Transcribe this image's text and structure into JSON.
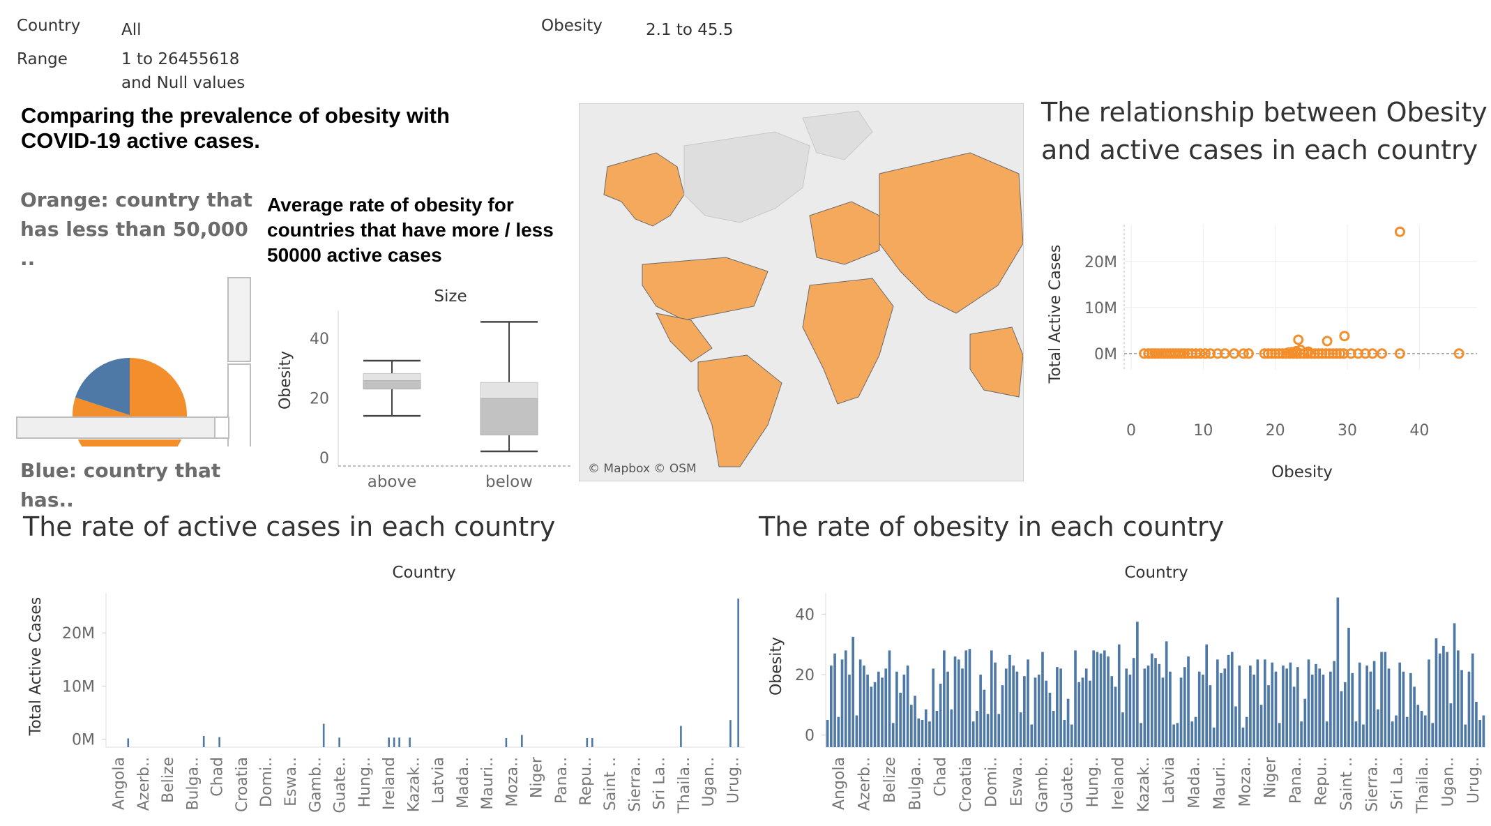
{
  "filters": {
    "country_label": "Country",
    "country_value": "All",
    "range_label": "Range",
    "range_value_line1": "1 to 26455618",
    "range_value_line2": "and Null values",
    "obesity_label": "Obesity",
    "obesity_value": "2.1 to 45.5"
  },
  "dashboard_title": "Comparing the prevalence of obesity with COVID-19 active cases.",
  "pie_legend": {
    "orange_text": "Orange: country that has less than 50,000 ..",
    "blue_text": "Blue: country that has.."
  },
  "colors": {
    "orange": "#F28E2B",
    "blue": "#4E79A7",
    "map_land": "#F4A95D",
    "map_bg": "#e8e8e8"
  },
  "map_attribution": "© Mapbox © OSM",
  "scatter_title": "The relationship between Obesity and active cases in each country",
  "active_title": "The rate of active cases in each country",
  "obesity_title": "The rate of obesity in each country",
  "chart_data": [
    {
      "type": "pie",
      "slices": [
        {
          "label": "Orange",
          "share": 0.8,
          "color": "#F28E2B"
        },
        {
          "label": "Blue",
          "share": 0.2,
          "color": "#4E79A7"
        }
      ]
    },
    {
      "type": "box",
      "title": "Average rate of obesity for countries that have more / less 50000 active cases",
      "header": "Size",
      "ylabel": "Obesity",
      "ylim": [
        0,
        47
      ],
      "yticks": [
        0,
        20,
        40
      ],
      "categories": [
        "above",
        "below"
      ],
      "boxes": [
        {
          "category": "above",
          "min": 14.0,
          "q1": 23.0,
          "median": 25.8,
          "q3": 28.2,
          "max": 32.5
        },
        {
          "category": "below",
          "min": 2.1,
          "q1": 7.6,
          "median": 19.8,
          "q3": 25.2,
          "max": 45.5
        }
      ]
    },
    {
      "type": "scatter",
      "xlabel": "Obesity",
      "ylabel": "Total Active Cases",
      "xlim": [
        0,
        48
      ],
      "ylim": [
        -2000000,
        28000000
      ],
      "xticks": [
        0,
        10,
        20,
        30,
        40
      ],
      "yticks": [
        0,
        10000000,
        20000000
      ],
      "yticklabels": [
        "0M",
        "10M",
        "20M"
      ],
      "points": [
        [
          1.8,
          0
        ],
        [
          2.4,
          0
        ],
        [
          2.9,
          0
        ],
        [
          3.3,
          0
        ],
        [
          3.7,
          0
        ],
        [
          4.2,
          0
        ],
        [
          4.6,
          0
        ],
        [
          5.0,
          0
        ],
        [
          5.4,
          0
        ],
        [
          5.8,
          0
        ],
        [
          6.2,
          0
        ],
        [
          6.6,
          0
        ],
        [
          7.0,
          0
        ],
        [
          7.4,
          0
        ],
        [
          7.9,
          0
        ],
        [
          8.4,
          0
        ],
        [
          9.0,
          0
        ],
        [
          9.6,
          0
        ],
        [
          10.3,
          0
        ],
        [
          11.0,
          0
        ],
        [
          12.0,
          0
        ],
        [
          13.0,
          0
        ],
        [
          14.3,
          0
        ],
        [
          15.6,
          0
        ],
        [
          16.3,
          0
        ],
        [
          18.5,
          0
        ],
        [
          19.0,
          0
        ],
        [
          19.5,
          0
        ],
        [
          20.0,
          0
        ],
        [
          20.5,
          0
        ],
        [
          21.0,
          0
        ],
        [
          21.5,
          0
        ],
        [
          22.0,
          0
        ],
        [
          22.5,
          0
        ],
        [
          23.0,
          0
        ],
        [
          23.5,
          0
        ],
        [
          24.0,
          0
        ],
        [
          24.5,
          0
        ],
        [
          25.0,
          0
        ],
        [
          25.5,
          0
        ],
        [
          26.0,
          0
        ],
        [
          26.5,
          0
        ],
        [
          27.0,
          0
        ],
        [
          27.5,
          0
        ],
        [
          28.0,
          0
        ],
        [
          28.5,
          0
        ],
        [
          29.0,
          0
        ],
        [
          29.5,
          0
        ],
        [
          30.5,
          0
        ],
        [
          31.5,
          0
        ],
        [
          32.5,
          0
        ],
        [
          33.5,
          0
        ],
        [
          34.8,
          0
        ],
        [
          37.3,
          0
        ],
        [
          45.5,
          0
        ],
        [
          22.3,
          300000
        ],
        [
          22.9,
          500000
        ],
        [
          23.5,
          800000
        ],
        [
          24.6,
          400000
        ],
        [
          21.8,
          200000
        ],
        [
          23.2,
          3000000
        ],
        [
          27.2,
          2700000
        ],
        [
          29.6,
          3800000
        ],
        [
          37.3,
          26455618
        ]
      ]
    },
    {
      "type": "bar",
      "header": "Country",
      "ylabel": "Total Active Cases",
      "ylim": [
        -1500000,
        27500000
      ],
      "yticks": [
        0,
        10000000,
        20000000
      ],
      "yticklabels": [
        "0M",
        "10M",
        "20M"
      ],
      "tick_labels": [
        "Angola",
        "Azerb..",
        "Belize",
        "Bulga..",
        "Chad",
        "Croatia",
        "Domi..",
        "Eswa..",
        "Gamb..",
        "Guate..",
        "Hung..",
        "Ireland",
        "Kazak..",
        "Latvia",
        "Mada..",
        "Mauri..",
        "Moza..",
        "Niger",
        "Pana..",
        "Repu..",
        "Saint ..",
        "Sierra..",
        "Sri La..",
        "Thaila..",
        "Ugan..",
        "Urug.."
      ],
      "values": [
        0,
        0,
        0,
        0,
        0,
        0,
        0,
        0,
        150000,
        0,
        0,
        0,
        0,
        0,
        0,
        0,
        0,
        0,
        0,
        0,
        0,
        0,
        0,
        0,
        0,
        0,
        0,
        0,
        0,
        0,
        0,
        0,
        0,
        0,
        0,
        0,
        0,
        600000,
        0,
        0,
        0,
        0,
        0,
        400000,
        0,
        0,
        0,
        0,
        0,
        0,
        0,
        0,
        0,
        0,
        0,
        0,
        0,
        0,
        0,
        0,
        0,
        0,
        0,
        0,
        0,
        0,
        0,
        0,
        0,
        0,
        0,
        0,
        0,
        0,
        0,
        0,
        0,
        0,
        0,
        0,
        0,
        0,
        0,
        2900000,
        0,
        0,
        0,
        0,
        0,
        300000,
        0,
        0,
        0,
        0,
        0,
        0,
        0,
        0,
        0,
        0,
        0,
        0,
        0,
        0,
        0,
        0,
        0,
        0,
        300000,
        0,
        300000,
        0,
        300000,
        0,
        0,
        0,
        300000,
        0,
        0,
        0,
        0,
        0,
        0,
        0,
        0,
        0,
        0,
        0,
        0,
        0,
        0,
        0,
        0,
        0,
        0,
        0,
        0,
        0,
        0,
        0,
        0,
        0,
        0,
        0,
        0,
        0,
        0,
        0,
        0,
        0,
        0,
        0,
        0,
        200000,
        0,
        0,
        0,
        0,
        0,
        800000,
        0,
        0,
        0,
        0,
        0,
        0,
        0,
        0,
        0,
        0,
        0,
        0,
        0,
        0,
        0,
        0,
        0,
        0,
        0,
        0,
        0,
        0,
        0,
        0,
        200000,
        0,
        200000,
        0,
        0,
        0,
        0,
        0,
        0,
        0,
        0,
        0,
        0,
        0,
        0,
        0,
        0,
        0,
        0,
        0,
        0,
        0,
        0,
        0,
        0,
        0,
        0,
        0,
        0,
        0,
        0,
        0,
        0,
        0,
        0,
        0,
        2500000,
        0,
        0,
        0,
        0,
        0,
        0,
        0,
        0,
        0,
        0,
        0,
        0,
        0,
        0,
        0,
        0,
        0,
        0,
        3600000,
        0,
        0,
        26455618,
        0,
        0
      ]
    },
    {
      "type": "bar",
      "header": "Country",
      "ylabel": "Obesity",
      "ylim": [
        -4,
        47
      ],
      "yticks": [
        0,
        20,
        40
      ],
      "tick_labels": [
        "Angola",
        "Azerb..",
        "Belize",
        "Bulga..",
        "Chad",
        "Croatia",
        "Domi..",
        "Eswa..",
        "Gamb..",
        "Guate..",
        "Hung..",
        "Ireland",
        "Kazak..",
        "Latvia",
        "Mada..",
        "Mauri..",
        "Moza..",
        "Niger",
        "Pana..",
        "Repu..",
        "Saint ..",
        "Sierra..",
        "Sri La..",
        "Thaila..",
        "Ugan..",
        "Urug.."
      ],
      "values": [
        5.0,
        23.0,
        27.0,
        6.0,
        25.0,
        28.0,
        20.0,
        32.5,
        6.5,
        25.0,
        23.0,
        20.0,
        16.0,
        17.5,
        21.0,
        19.0,
        22.0,
        28.0,
        4.0,
        21.0,
        14.0,
        20.0,
        23.0,
        10.0,
        13.0,
        5.5,
        5.0,
        8.5,
        4.5,
        22.0,
        8.0,
        17.0,
        28.0,
        21.0,
        8.5,
        26.0,
        25.0,
        22.0,
        28.0,
        28.5,
        4.5,
        8.0,
        20.0,
        15.0,
        7.0,
        28.0,
        24.0,
        7.0,
        16.5,
        22.0,
        26.5,
        23.0,
        21.0,
        7.5,
        19.5,
        25.0,
        3.5,
        19.0,
        20.0,
        27.5,
        18.0,
        14.0,
        8.0,
        22.5,
        22.0,
        5.0,
        12.0,
        3.5,
        28.0,
        17.5,
        19.0,
        22.0,
        18.0,
        28.0,
        27.5,
        27.0,
        28.0,
        26.0,
        19.5,
        16.0,
        30.0,
        7.5,
        22.0,
        20.0,
        25.5,
        37.5,
        4.0,
        22.0,
        23.0,
        27.0,
        25.5,
        23.5,
        19.0,
        31.0,
        21.0,
        3.5,
        4.0,
        19.0,
        22.5,
        26.0,
        4.5,
        6.0,
        21.0,
        20.0,
        30.0,
        16.5,
        2.5,
        25.0,
        20.5,
        22.0,
        26.5,
        27.5,
        9.5,
        23.0,
        2.5,
        6.0,
        23.0,
        20.0,
        25.0,
        10.0,
        25.0,
        16.5,
        24.0,
        21.0,
        4.0,
        23.0,
        22.0,
        24.0,
        16.0,
        22.5,
        4.5,
        12.0,
        25.0,
        20.0,
        23.5,
        22.0,
        20.0,
        4.5,
        21.0,
        24.5,
        45.5,
        14.5,
        17.5,
        35.5,
        20.5,
        4.5,
        24.0,
        3.5,
        23.0,
        21.0,
        24.5,
        8.5,
        27.5,
        27.5,
        22.0,
        4.5,
        6.5,
        24.0,
        21.0,
        6.0,
        20.5,
        16.0,
        10.0,
        8.0,
        6.5,
        25.0,
        4.0,
        32.0,
        27.0,
        29.5,
        27.5,
        10.5,
        37.0,
        28.0,
        21.5,
        3.5,
        21.0,
        27.0,
        11.0,
        5.0,
        6.5
      ]
    }
  ]
}
